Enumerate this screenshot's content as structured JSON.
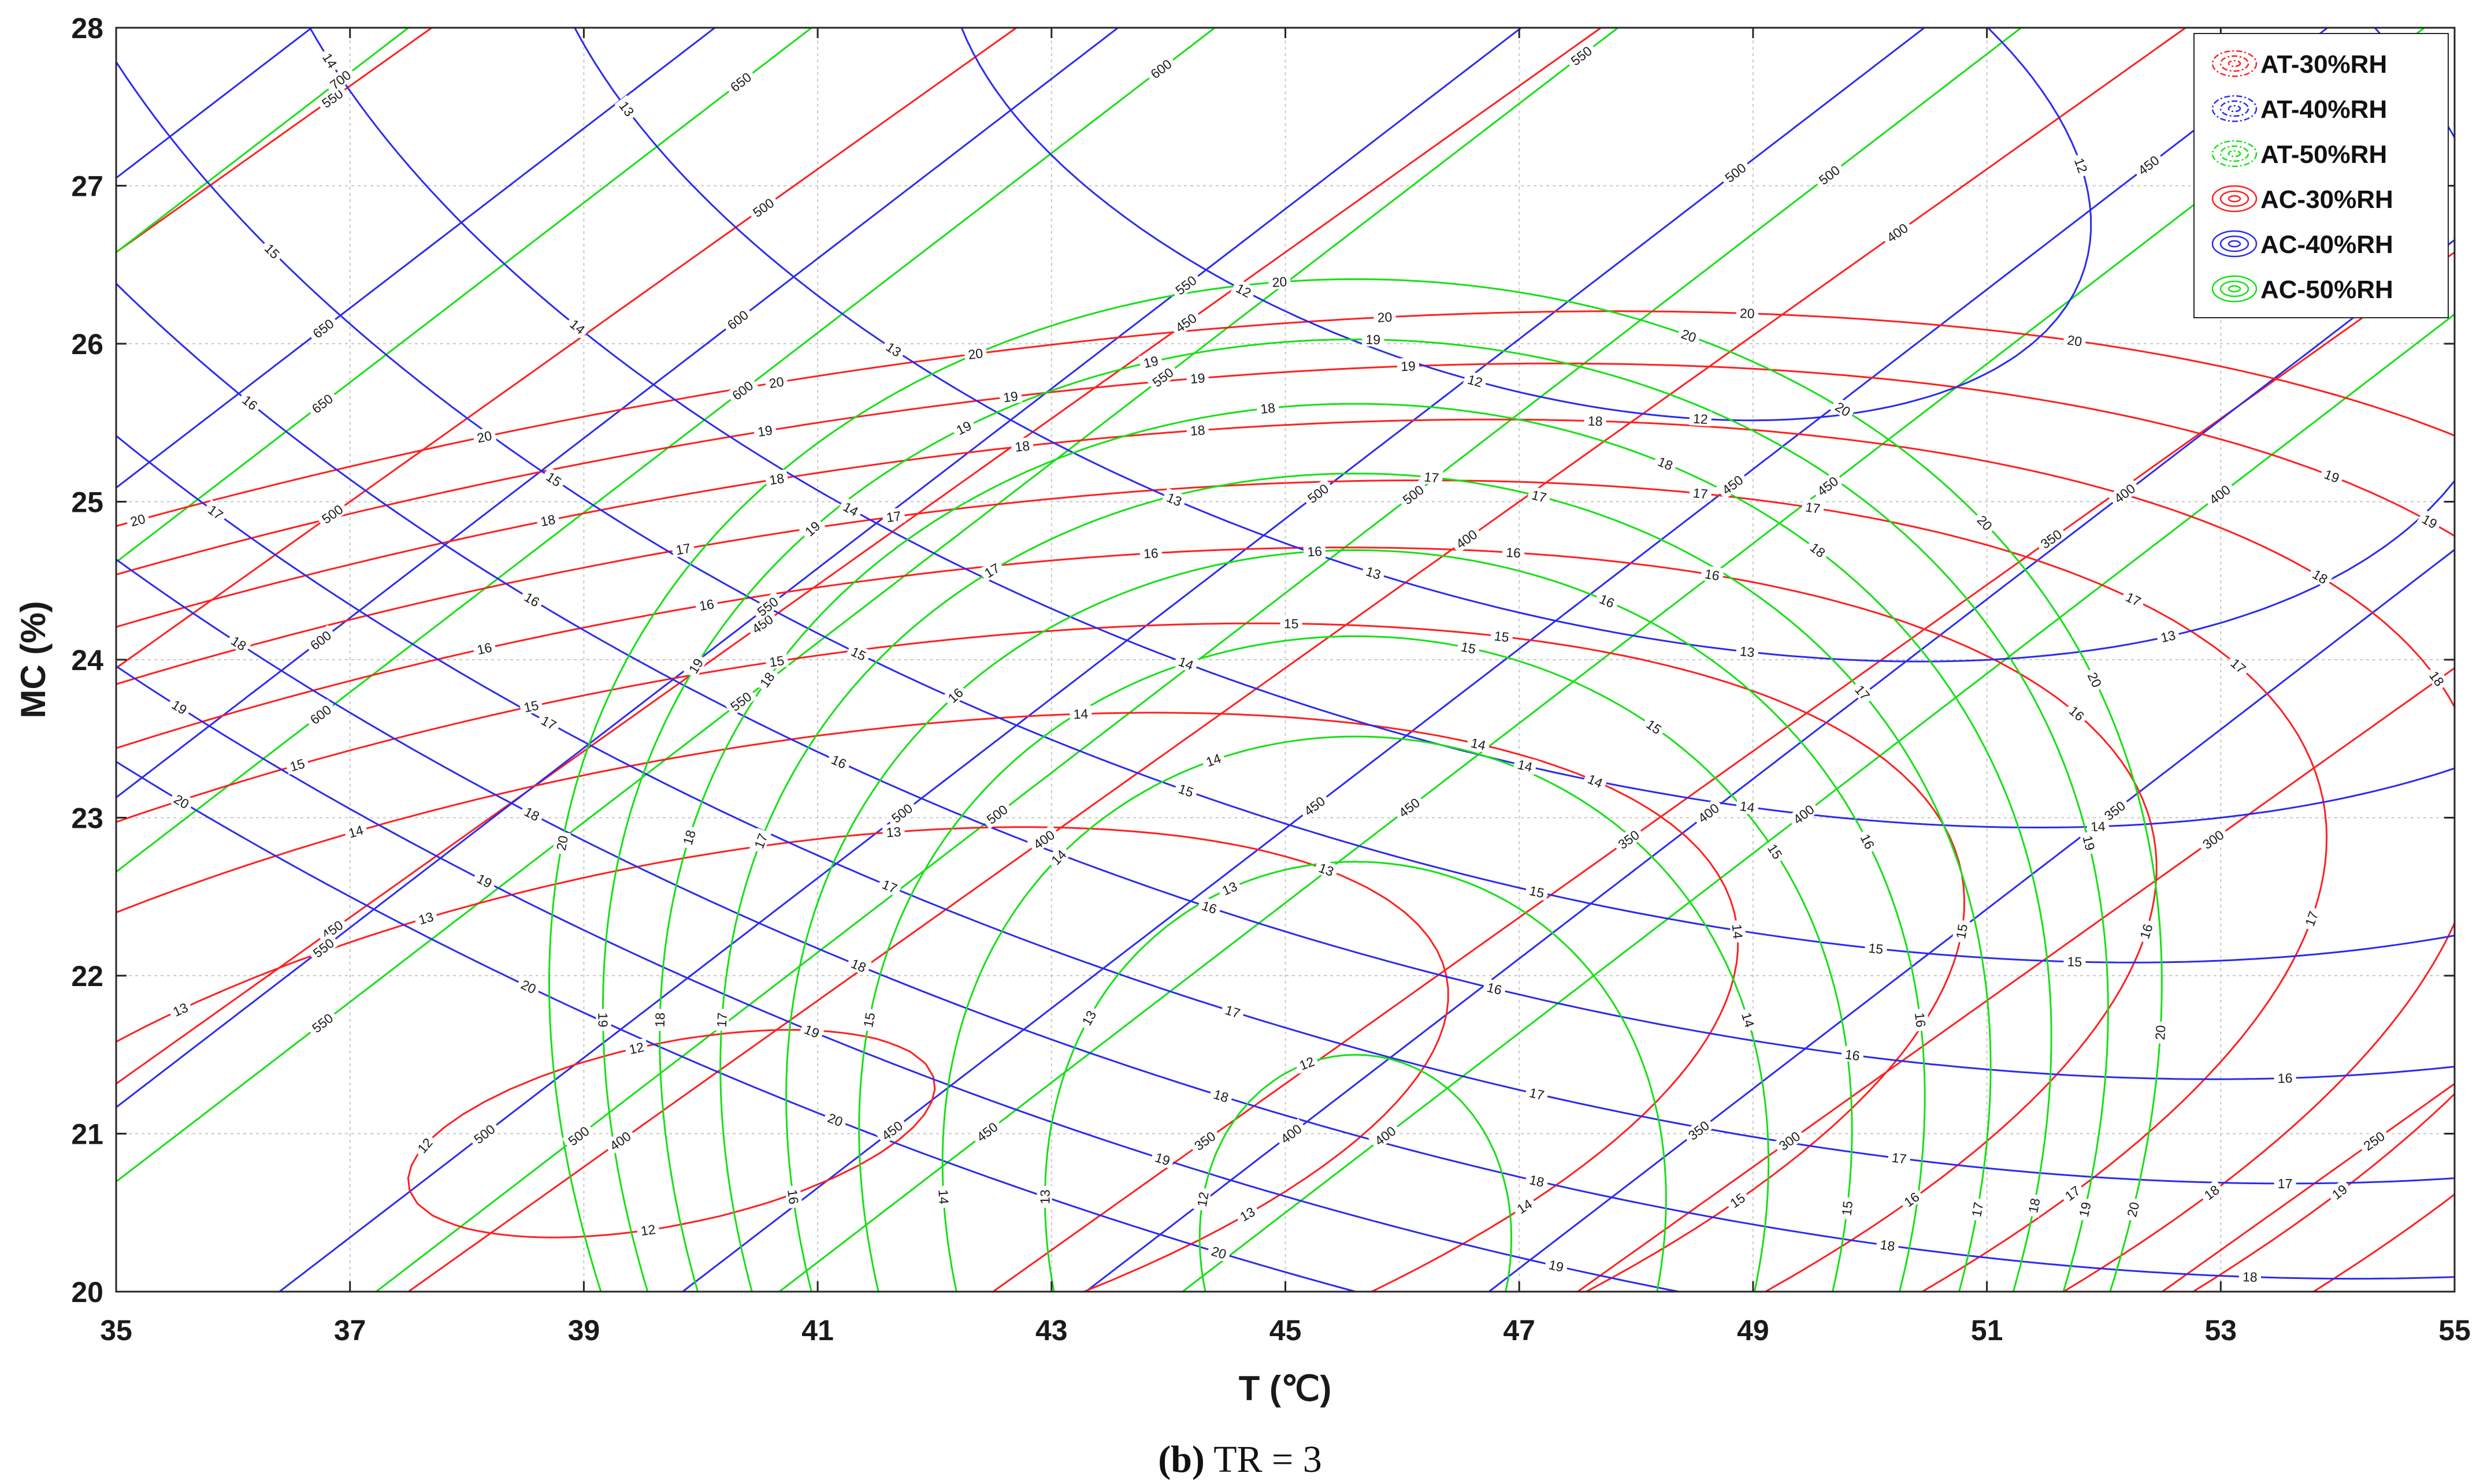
{
  "chart_data": {
    "type": "contour",
    "xlabel": "T (℃)",
    "ylabel": "MC (%)",
    "xlim": [
      35,
      55
    ],
    "ylim": [
      20,
      28
    ],
    "x_ticks": [
      "35",
      "37",
      "39",
      "41",
      "43",
      "45",
      "47",
      "49",
      "51",
      "53",
      "55"
    ],
    "y_ticks": [
      "20",
      "21",
      "22",
      "23",
      "24",
      "25",
      "26",
      "27",
      "28"
    ],
    "grid": true,
    "legend_position": "top-right",
    "caption_bold": "(b)",
    "caption_rest": " TR = 3",
    "series": [
      {
        "name": "AT-30%RH",
        "quantity": "AT",
        "color": "#ff2020",
        "line": "dashdot",
        "levels": [
          250,
          300,
          350,
          400,
          450,
          500,
          550,
          600,
          650,
          700
        ]
      },
      {
        "name": "AT-40%RH",
        "quantity": "AT",
        "color": "#2b2bf0",
        "line": "dashdot",
        "levels": [
          350,
          400,
          450,
          500,
          550,
          600,
          650,
          700
        ]
      },
      {
        "name": "AT-50%RH",
        "quantity": "AT",
        "color": "#16e016",
        "line": "dashdot",
        "levels": [
          400,
          450,
          500,
          550,
          600,
          650,
          700
        ]
      },
      {
        "name": "AC-30%RH",
        "quantity": "AC",
        "color": "#ff2020",
        "line": "solid",
        "levels": [
          12,
          13,
          14,
          15,
          16,
          17,
          18,
          19,
          20
        ]
      },
      {
        "name": "AC-40%RH",
        "quantity": "AC",
        "color": "#2b2bf0",
        "line": "solid",
        "levels": [
          12,
          13,
          14,
          15,
          16,
          17,
          18,
          19,
          20
        ]
      },
      {
        "name": "AC-50%RH",
        "quantity": "AC",
        "color": "#16e016",
        "line": "solid",
        "levels": [
          12,
          13,
          14,
          15,
          16,
          17,
          18,
          19,
          20
        ]
      }
    ]
  }
}
